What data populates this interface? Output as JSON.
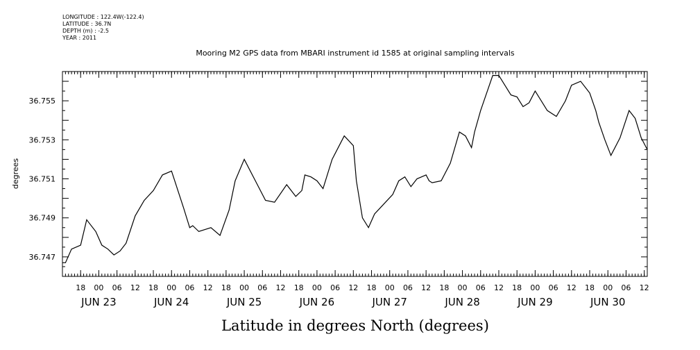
{
  "header": {
    "lines": [
      "LONGITUDE : 122.4W(-122.4)",
      "LATITUDE : 36.7N",
      "DEPTH (m) : -2.5",
      "YEAR : 2011"
    ]
  },
  "chart_data": {
    "type": "line",
    "title": "Mooring M2 GPS data from MBARI instrument id 1585 at original sampling intervals",
    "xlabel": "Latitude in degrees North (degrees)",
    "ylabel": "degrees",
    "xlim": [
      "2011-06-22T12:00",
      "2011-06-30T13:00"
    ],
    "ylim": [
      36.746,
      36.7565
    ],
    "yticks": [
      "36.747",
      "36.749",
      "36.751",
      "36.753",
      "36.755"
    ],
    "hour_labels": [
      "18",
      "00",
      "06",
      "12",
      "18",
      "00",
      "06",
      "12",
      "18",
      "00",
      "06",
      "12",
      "18",
      "00",
      "06",
      "12",
      "18",
      "00",
      "06",
      "12",
      "18",
      "00",
      "06",
      "12",
      "18",
      "00",
      "06",
      "12",
      "18",
      "00",
      "06",
      "12"
    ],
    "date_labels": [
      "JUN 23",
      "JUN 24",
      "JUN 25",
      "JUN 26",
      "JUN 27",
      "JUN 28",
      "JUN 29",
      "JUN 30"
    ],
    "grid": false,
    "series": [
      {
        "x": [
          "2011-06-22T12:00",
          "2011-06-22T13:00",
          "2011-06-22T15:00",
          "2011-06-22T18:00",
          "2011-06-22T20:00",
          "2011-06-22T23:00",
          "2011-06-23T01:00",
          "2011-06-23T03:00",
          "2011-06-23T05:00",
          "2011-06-23T07:00",
          "2011-06-23T09:00",
          "2011-06-23T12:00",
          "2011-06-23T15:00",
          "2011-06-23T18:00",
          "2011-06-23T21:00",
          "2011-06-24T00:00",
          "2011-06-24T04:00",
          "2011-06-24T06:00",
          "2011-06-24T07:00",
          "2011-06-24T09:00",
          "2011-06-24T13:00",
          "2011-06-24T16:00",
          "2011-06-24T19:00",
          "2011-06-24T21:00",
          "2011-06-25T00:00",
          "2011-06-25T04:00",
          "2011-06-25T07:00",
          "2011-06-25T10:00",
          "2011-06-25T14:00",
          "2011-06-25T17:00",
          "2011-06-25T19:00",
          "2011-06-25T20:00",
          "2011-06-25T22:00",
          "2011-06-26T00:00",
          "2011-06-26T02:00",
          "2011-06-26T05:00",
          "2011-06-26T07:00",
          "2011-06-26T09:00",
          "2011-06-26T12:00",
          "2011-06-26T13:00",
          "2011-06-26T15:00",
          "2011-06-26T17:00",
          "2011-06-26T19:00",
          "2011-06-26T22:00",
          "2011-06-27T01:00",
          "2011-06-27T03:00",
          "2011-06-27T05:00",
          "2011-06-27T07:00",
          "2011-06-27T09:00",
          "2011-06-27T12:00",
          "2011-06-27T13:00",
          "2011-06-27T14:00",
          "2011-06-27T17:00",
          "2011-06-27T20:00",
          "2011-06-27T23:00",
          "2011-06-28T01:00",
          "2011-06-28T03:00",
          "2011-06-28T04:00",
          "2011-06-28T06:00",
          "2011-06-28T10:00",
          "2011-06-28T12:00",
          "2011-06-28T16:00",
          "2011-06-28T18:00",
          "2011-06-28T20:00",
          "2011-06-28T22:00",
          "2011-06-29T00:00",
          "2011-06-29T04:00",
          "2011-06-29T07:00",
          "2011-06-29T10:00",
          "2011-06-29T12:00",
          "2011-06-29T15:00",
          "2011-06-29T18:00",
          "2011-06-29T20:00",
          "2011-06-29T21:00",
          "2011-06-29T23:00",
          "2011-06-30T01:00",
          "2011-06-30T04:00",
          "2011-06-30T07:00",
          "2011-06-30T09:00",
          "2011-06-30T11:00",
          "2011-06-30T13:00"
        ],
        "y": [
          36.7467,
          36.7467,
          36.7474,
          36.7476,
          36.7489,
          36.7483,
          36.7476,
          36.7474,
          36.7471,
          36.7473,
          36.7477,
          36.7491,
          36.7499,
          36.7504,
          36.7512,
          36.7514,
          36.7495,
          36.7485,
          36.7486,
          36.7483,
          36.7485,
          36.7481,
          36.7494,
          36.7509,
          36.752,
          36.7508,
          36.7499,
          36.7498,
          36.7507,
          36.7501,
          36.7504,
          36.7512,
          36.7511,
          36.7509,
          36.7505,
          36.752,
          36.7526,
          36.7532,
          36.7527,
          36.7509,
          36.749,
          36.7485,
          36.7492,
          36.7497,
          36.7502,
          36.7509,
          36.7511,
          36.7506,
          36.751,
          36.7512,
          36.7509,
          36.7508,
          36.7509,
          36.7518,
          36.7534,
          36.7532,
          36.7526,
          36.7534,
          36.7545,
          36.7563,
          36.7563,
          36.7553,
          36.7552,
          36.7547,
          36.7549,
          36.7555,
          36.7545,
          36.7542,
          36.755,
          36.7558,
          36.756,
          36.7554,
          36.7545,
          36.7539,
          36.753,
          36.7522,
          36.7531,
          36.7545,
          36.7541,
          36.7531,
          36.7525
        ]
      }
    ]
  }
}
